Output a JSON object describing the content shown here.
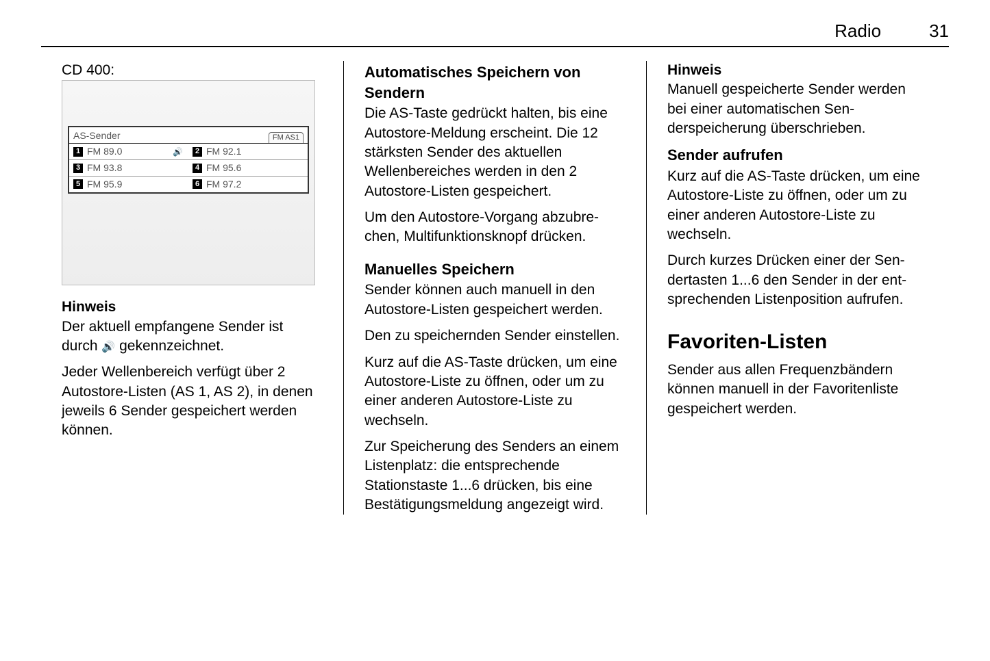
{
  "header": {
    "section": "Radio",
    "page": "31"
  },
  "col1": {
    "label": "CD 400:",
    "display": {
      "title": "AS-Sender",
      "tab": "FM AS1",
      "rows": [
        {
          "left_num": "1",
          "left_val": "FM  89.0",
          "left_icon": true,
          "right_num": "2",
          "right_val": "FM  92.1"
        },
        {
          "left_num": "3",
          "left_val": "FM  93.8",
          "left_icon": false,
          "right_num": "4",
          "right_val": "FM  95.6"
        },
        {
          "left_num": "5",
          "left_val": "FM  95.9",
          "left_icon": false,
          "right_num": "6",
          "right_val": "FM  97.2"
        }
      ]
    },
    "hinweis_label": "Hinweis",
    "hinweis_text_a": "Der aktuell empfangene Sender ist durch ",
    "hinweis_text_b": " gekennzeichnet.",
    "p2": "Jeder Wellenbereich verfügt über 2 Autostore-Listen (AS 1, AS 2), in de­nen jeweils 6 Sender gespeichert werden können."
  },
  "col2": {
    "h1": "Automatisches Speichern von Sendern",
    "p1": "Die AS-Taste gedrückt halten, bis eine Autostore-Meldung erscheint. Die 12 stärksten Sender des aktuel­len Wellenbereiches werden in den 2 Autostore-Listen gespeichert.",
    "p2": "Um den Autostore-Vorgang abzubre­chen, Multifunktionsknopf drücken.",
    "h2": "Manuelles Speichern",
    "p3": "Sender können auch manuell in den Autostore-Listen gespeichert wer­den.",
    "p4": "Den zu speichernden Sender einstel­len.",
    "p5": "Kurz auf die AS-Taste drücken, um eine Autostore-Liste zu öffnen, oder um zu einer anderen Autostore-Liste zu wechseln.",
    "p6": "Zur Speicherung des Senders an einem Listenplatz: die entsprechende Stationstaste 1...6 drücken, bis eine Bestätigungsmeldung angezeigt wird."
  },
  "col3": {
    "hinweis_label": "Hinweis",
    "hinweis_text": "Manuell gespeicherte Sender wer­den bei einer automatischen Sen­derspeicherung überschrieben.",
    "h1": "Sender aufrufen",
    "p1": "Kurz auf die AS-Taste drücken, um eine Autostore-Liste zu öffnen, oder um zu einer anderen Autostore-Liste zu wechseln.",
    "p2": "Durch kurzes Drücken einer der Sen­dertasten 1...6 den Sender in der ent­sprechenden Listenposition aufrufen.",
    "h2": "Favoriten-Listen",
    "p3": "Sender aus allen Frequenzbändern können manuell in der Favoritenliste gespeichert werden."
  }
}
